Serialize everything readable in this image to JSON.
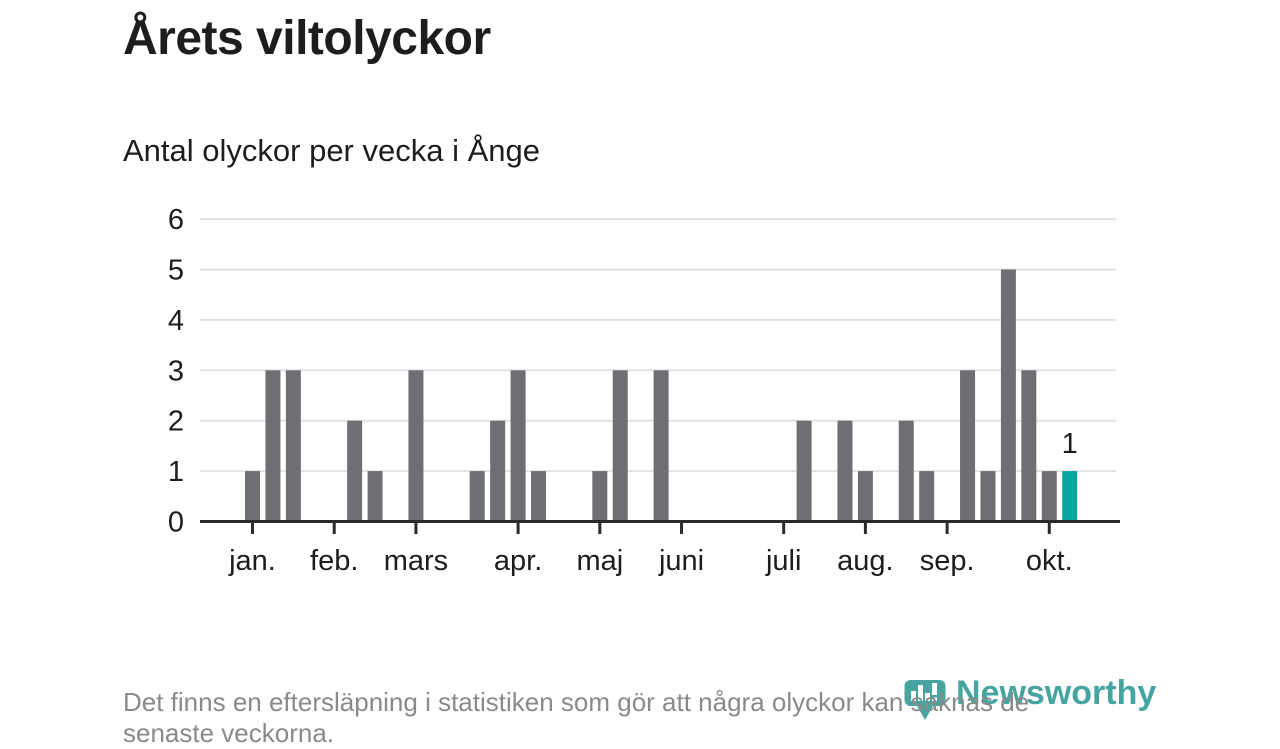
{
  "header": {
    "title": "Årets viltolyckor",
    "subtitle": "Antal olyckor per vecka i Ånge"
  },
  "chart_data": {
    "type": "bar",
    "title": "Årets viltolyckor",
    "subtitle": "Antal olyckor per vecka i Ånge",
    "x_unit": "week",
    "values": [
      1,
      3,
      3,
      0,
      0,
      2,
      1,
      0,
      3,
      0,
      0,
      1,
      2,
      3,
      1,
      0,
      0,
      1,
      3,
      0,
      3,
      0,
      0,
      0,
      0,
      0,
      0,
      2,
      0,
      2,
      1,
      0,
      2,
      1,
      0,
      3,
      1,
      5,
      3,
      1,
      1
    ],
    "highlight_index": 40,
    "highlight_label": "1",
    "ylim": [
      0,
      6
    ],
    "yticks": [
      0,
      1,
      2,
      3,
      4,
      5,
      6
    ],
    "grid": true,
    "legend": "none",
    "month_ticks": [
      {
        "label": "jan.",
        "week": 0
      },
      {
        "label": "feb.",
        "week": 4
      },
      {
        "label": "mars",
        "week": 8
      },
      {
        "label": "apr.",
        "week": 13
      },
      {
        "label": "maj",
        "week": 17
      },
      {
        "label": "juni",
        "week": 21
      },
      {
        "label": "juli",
        "week": 26
      },
      {
        "label": "aug.",
        "week": 30
      },
      {
        "label": "sep.",
        "week": 34
      },
      {
        "label": "okt.",
        "week": 39
      }
    ],
    "colors": {
      "bar": "#6f6f73",
      "highlight": "#07a59e",
      "grid": "#e2e2e2",
      "axis": "#2b2a28",
      "text": "#1d1d1b"
    }
  },
  "footer": {
    "lines": [
      "Det finns en eftersläpning i statistiken som gör att några olyckor kan saknas de",
      "senaste veckorna."
    ]
  },
  "brand": {
    "name": "Newsworthy",
    "color": "#46a5a1"
  }
}
